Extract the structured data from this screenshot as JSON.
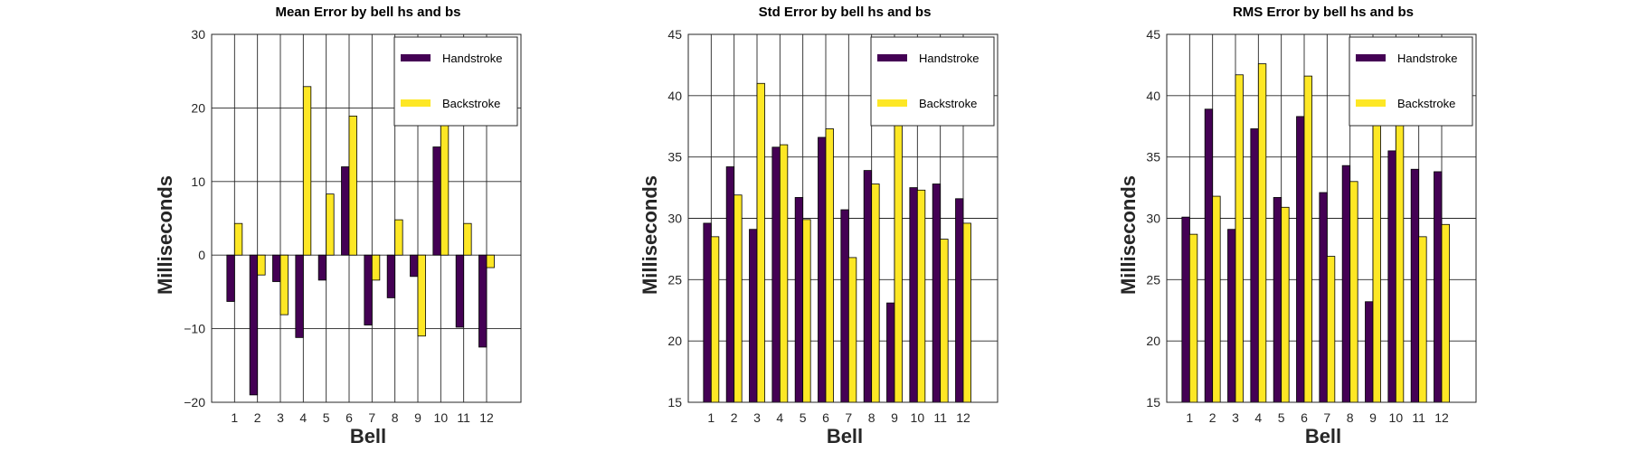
{
  "chart_data": [
    {
      "type": "bar",
      "title": "Mean Error by bell hs and bs",
      "xlabel": "Bell",
      "ylabel": "Milliseconds",
      "ylim": [
        -20,
        30
      ],
      "yticks": [
        -20,
        -10,
        0,
        10,
        20,
        30
      ],
      "ytick_labels": [
        "−20",
        "−10",
        "0",
        "10",
        "20",
        "30"
      ],
      "grid": true,
      "legend_position": "top-right",
      "categories": [
        "1",
        "2",
        "3",
        "4",
        "5",
        "6",
        "7",
        "8",
        "9",
        "10",
        "11",
        "12"
      ],
      "series": [
        {
          "name": "Handstroke",
          "color": "#440154",
          "values": [
            -6.3,
            -19.0,
            -3.6,
            -11.2,
            -3.4,
            12.0,
            -9.5,
            -5.8,
            -2.9,
            14.7,
            -9.8,
            -12.5
          ]
        },
        {
          "name": "Backstroke",
          "color": "#fde725",
          "values": [
            4.3,
            -2.7,
            -8.1,
            22.9,
            8.3,
            18.9,
            -3.4,
            4.8,
            -11.0,
            19.9,
            4.3,
            -1.7
          ]
        }
      ]
    },
    {
      "type": "bar",
      "title": "Std Error by bell hs and bs",
      "xlabel": "Bell",
      "ylabel": "Milliseconds",
      "ylim": [
        15,
        45
      ],
      "yticks": [
        15,
        20,
        25,
        30,
        35,
        40,
        45
      ],
      "ytick_labels": [
        "15",
        "20",
        "25",
        "30",
        "35",
        "40",
        "45"
      ],
      "grid": true,
      "legend_position": "top-right",
      "categories": [
        "1",
        "2",
        "3",
        "4",
        "5",
        "6",
        "7",
        "8",
        "9",
        "10",
        "11",
        "12"
      ],
      "series": [
        {
          "name": "Handstroke",
          "color": "#440154",
          "values": [
            29.6,
            34.2,
            29.1,
            35.8,
            31.7,
            36.6,
            30.7,
            33.9,
            23.1,
            32.5,
            32.8,
            31.6
          ]
        },
        {
          "name": "Backstroke",
          "color": "#fde725",
          "values": [
            28.5,
            31.9,
            41.0,
            36.0,
            29.9,
            37.3,
            26.8,
            32.8,
            38.9,
            32.3,
            28.3,
            29.6
          ]
        }
      ]
    },
    {
      "type": "bar",
      "title": "RMS Error by bell hs and bs",
      "xlabel": "Bell",
      "ylabel": "Milliseconds",
      "ylim": [
        15,
        45
      ],
      "yticks": [
        15,
        20,
        25,
        30,
        35,
        40,
        45
      ],
      "ytick_labels": [
        "15",
        "20",
        "25",
        "30",
        "35",
        "40",
        "45"
      ],
      "grid": true,
      "legend_position": "top-right",
      "categories": [
        "1",
        "2",
        "3",
        "4",
        "5",
        "6",
        "7",
        "8",
        "9",
        "10",
        "11",
        "12"
      ],
      "series": [
        {
          "name": "Handstroke",
          "color": "#440154",
          "values": [
            30.1,
            38.9,
            29.1,
            37.3,
            31.7,
            38.3,
            32.1,
            34.3,
            23.2,
            35.5,
            34.0,
            33.8
          ]
        },
        {
          "name": "Backstroke",
          "color": "#fde725",
          "values": [
            28.7,
            31.8,
            41.7,
            42.6,
            30.9,
            41.6,
            26.9,
            33.0,
            40.3,
            37.8,
            28.5,
            29.5
          ]
        }
      ]
    }
  ]
}
